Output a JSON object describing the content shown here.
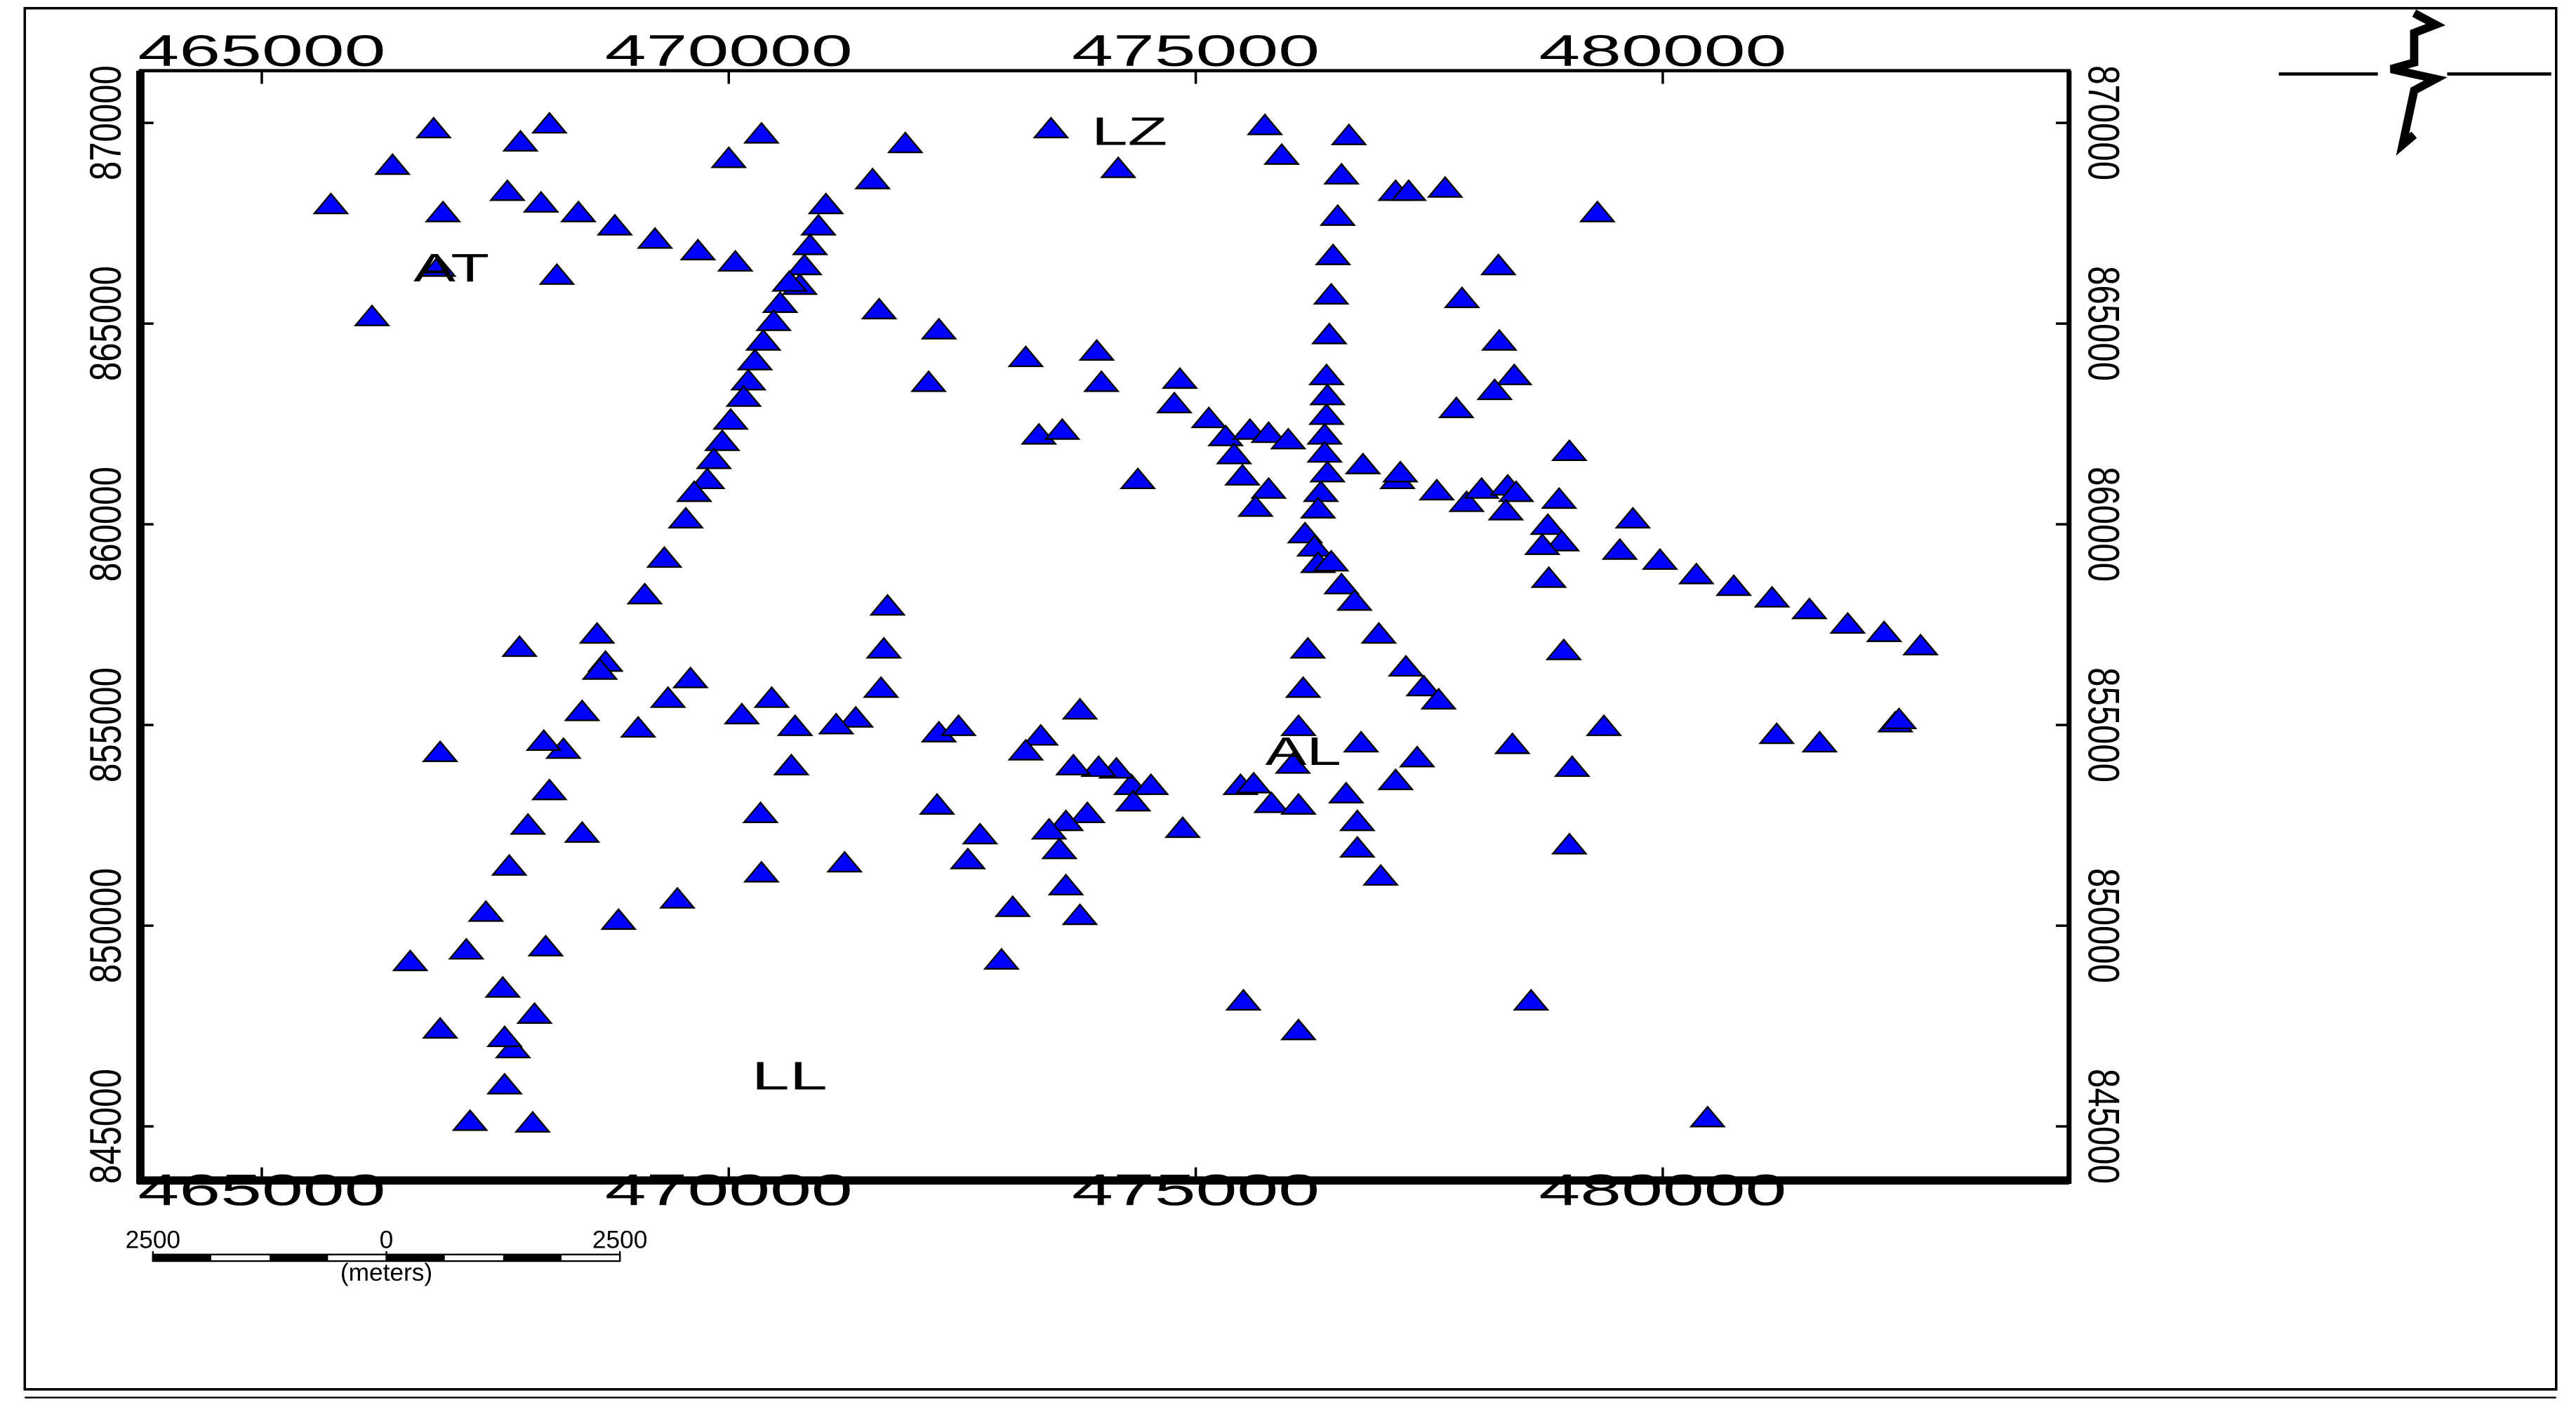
{
  "chart_data": {
    "type": "scatter",
    "color": "#0000ff",
    "xlim": [
      463700,
      484350
    ],
    "ylim": [
      843650,
      871300
    ],
    "xticks": [
      465000,
      470000,
      475000,
      480000
    ],
    "yticks": [
      845000,
      850000,
      855000,
      860000,
      865000,
      870000
    ],
    "x": [
      465740,
      466400,
      466840,
      466940,
      466180,
      466890,
      467630,
      467770,
      468080,
      467990,
      468390,
      468780,
      469210,
      469670,
      470070,
      470000,
      470350,
      468160,
      471040,
      470960,
      470870,
      470810,
      470760,
      470650,
      470550,
      470480,
      470370,
      470280,
      470210,
      470160,
      470020,
      469930,
      469840,
      469770,
      469630,
      469540,
      469310,
      469100,
      471540,
      471890,
      471610,
      472250,
      472140,
      473450,
      474170,
      473180,
      473940,
      473990,
      473320,
      473570,
      474380,
      474830,
      474770,
      475140,
      475320,
      475580,
      475780,
      475990,
      475410,
      475500,
      475780,
      475640,
      475740,
      475920,
      476640,
      476560,
      476520,
      476470,
      476450,
      476430,
      476400,
      476410,
      476400,
      476380,
      476380,
      476410,
      476340,
      476310,
      476170,
      476270,
      476310,
      476450,
      476560,
      476700,
      477140,
      477280,
      477670,
      479300,
      478240,
      477850,
      478250,
      478410,
      478200,
      477790,
      479000,
      476790,
      477160,
      477190,
      477580,
      477900,
      478060,
      478340,
      478430,
      478320,
      478890,
      478770,
      478920,
      478710,
      478780,
      479680,
      479540,
      479970,
      480360,
      480760,
      481170,
      481570,
      481980,
      482370,
      482760,
      476960,
      477250,
      477440,
      477600,
      478940,
      479370,
      481220,
      481680,
      482490,
      482530,
      476200,
      476150,
      476100,
      476040,
      476770,
      477370,
      477140,
      476610,
      476730,
      476730,
      476980,
      478390,
      479030,
      479000,
      475480,
      475620,
      475810,
      476100,
      474860,
      474310,
      474330,
      474520,
      474150,
      473960,
      473690,
      473760,
      473340,
      473180,
      473840,
      473610,
      473430,
      473540,
      473610,
      473760,
      473040,
      472920,
      472690,
      472560,
      472230,
      472250,
      472460,
      471700,
      471660,
      471630,
      471360,
      471150,
      470710,
      470670,
      470460,
      470140,
      470340,
      470350,
      471240,
      469590,
      469350,
      469030,
      468590,
      468680,
      468620,
      468430,
      468230,
      468020,
      468080,
      467850,
      467650,
      467760,
      466910,
      467400,
      467190,
      466590,
      468040,
      468430,
      468820,
      469450,
      467580,
      467920,
      467690,
      466910,
      467600,
      467600,
      467230,
      467900,
      475510,
      476100,
      478590,
      480480
    ],
    "values": [
      867950,
      868930,
      869840,
      867750,
      865160,
      866390,
      868280,
      869510,
      869960,
      867990,
      867750,
      867420,
      867090,
      866800,
      866520,
      869100,
      869710,
      866190,
      867950,
      867420,
      866930,
      866430,
      865940,
      866020,
      865490,
      865040,
      864550,
      864060,
      863560,
      863150,
      862580,
      862050,
      861600,
      861100,
      860780,
      860120,
      859140,
      858230,
      868570,
      869470,
      865330,
      864830,
      863520,
      869840,
      868850,
      864140,
      864300,
      863520,
      862210,
      862330,
      861100,
      863600,
      862990,
      862620,
      862170,
      862330,
      862250,
      862090,
      861720,
      861190,
      860860,
      860410,
      869920,
      869180,
      869670,
      868690,
      867660,
      866680,
      865700,
      864710,
      863690,
      863190,
      862700,
      862210,
      861760,
      861270,
      860780,
      860370,
      859750,
      859420,
      859010,
      859050,
      858480,
      858070,
      868280,
      868280,
      868360,
      867750,
      866430,
      865610,
      864550,
      863690,
      863320,
      862870,
      861800,
      861470,
      861100,
      861270,
      860820,
      860530,
      860860,
      860940,
      860780,
      860320,
      860610,
      859960,
      859550,
      859460,
      858640,
      860120,
      859340,
      859090,
      858730,
      858440,
      858150,
      857860,
      857500,
      857290,
      856960,
      857250,
      856430,
      855940,
      855610,
      856840,
      854950,
      854750,
      854540,
      855040,
      855120,
      856880,
      855900,
      854950,
      854010,
      854540,
      854170,
      853600,
      853270,
      852580,
      851920,
      851220,
      854500,
      853930,
      852000,
      853480,
      853520,
      853030,
      852990,
      852410,
      853480,
      853070,
      853480,
      853890,
      853930,
      853970,
      855360,
      854710,
      854340,
      852780,
      852580,
      852370,
      851880,
      850980,
      850240,
      850440,
      849130,
      852250,
      851630,
      852990,
      854790,
      854950,
      857950,
      856880,
      855900,
      855160,
      854990,
      854950,
      853970,
      855650,
      855240,
      852780,
      851300,
      851550,
      856140,
      855650,
      854910,
      857250,
      856550,
      856350,
      855320,
      854380,
      854580,
      853350,
      852490,
      851470,
      856920,
      854300,
      850320,
      849380,
      849090,
      849460,
      852290,
      850120,
      850650,
      848430,
      847780,
      846920,
      847410,
      847200,
      846020,
      845110,
      845070,
      848110,
      847370,
      848110,
      845200
    ],
    "annotations": [
      {
        "text": "AT",
        "x": 467030,
        "y": 866310
      },
      {
        "text": "LZ",
        "x": 474290,
        "y": 869710
      },
      {
        "text": "AL",
        "x": 476150,
        "y": 854260
      },
      {
        "text": "LL",
        "x": 470650,
        "y": 846180
      }
    ],
    "scale_bar": {
      "ticks": [
        {
          "value": -2500,
          "label": "2500"
        },
        0,
        2500
      ],
      "unit": "(meters)"
    }
  }
}
